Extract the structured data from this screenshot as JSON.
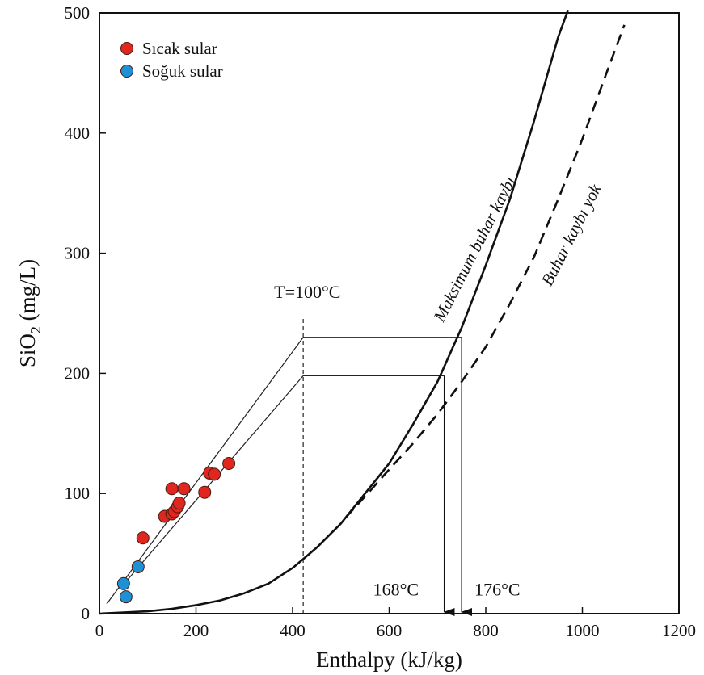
{
  "chart_data": {
    "type": "scatter",
    "xlabel": "Enthalpy (kJ/kg)",
    "ylabel": {
      "base": "SiO",
      "sub": "2",
      "rest": " (mg/L)"
    },
    "xlim": [
      0,
      1200
    ],
    "ylim": [
      0,
      500
    ],
    "xticks": [
      0,
      200,
      400,
      600,
      800,
      1000,
      1200
    ],
    "yticks": [
      0,
      100,
      200,
      300,
      400,
      500
    ],
    "grid": false,
    "legend_position": "top-left",
    "series": [
      {
        "name": "Sıcak sular",
        "color": "#e0271f",
        "points": [
          [
            90,
            63
          ],
          [
            135,
            81
          ],
          [
            150,
            83
          ],
          [
            155,
            85
          ],
          [
            162,
            89
          ],
          [
            165,
            92
          ],
          [
            150,
            104
          ],
          [
            175,
            104
          ],
          [
            218,
            101
          ],
          [
            228,
            117
          ],
          [
            238,
            116
          ],
          [
            268,
            125
          ]
        ]
      },
      {
        "name": "Soğuk sular",
        "color": "#1e90d6",
        "points": [
          [
            50,
            25
          ],
          [
            55,
            14
          ],
          [
            80,
            39
          ]
        ]
      }
    ],
    "curves": [
      {
        "label": "Maksimum buhar kaybı",
        "style": "solid",
        "points": [
          [
            0,
            0
          ],
          [
            50,
            1
          ],
          [
            100,
            2
          ],
          [
            150,
            4
          ],
          [
            200,
            7
          ],
          [
            250,
            11
          ],
          [
            300,
            17
          ],
          [
            350,
            25
          ],
          [
            400,
            38
          ],
          [
            450,
            55
          ],
          [
            500,
            75
          ],
          [
            550,
            100
          ],
          [
            600,
            125
          ],
          [
            650,
            158
          ],
          [
            700,
            193
          ],
          [
            750,
            238
          ],
          [
            800,
            290
          ],
          [
            850,
            345
          ],
          [
            900,
            410
          ],
          [
            950,
            480
          ],
          [
            970,
            502
          ]
        ]
      },
      {
        "label": "Buhar kaybı yok",
        "style": "dashed",
        "points": [
          [
            510,
            80
          ],
          [
            560,
            102
          ],
          [
            600,
            120
          ],
          [
            650,
            142
          ],
          [
            700,
            166
          ],
          [
            750,
            193
          ],
          [
            800,
            222
          ],
          [
            850,
            258
          ],
          [
            900,
            297
          ],
          [
            950,
            345
          ],
          [
            1000,
            395
          ],
          [
            1050,
            450
          ],
          [
            1087,
            490
          ]
        ]
      }
    ],
    "mixing_lines": [
      {
        "points": [
          [
            15,
            8
          ],
          [
            422,
            230
          ],
          [
            750,
            230
          ]
        ]
      },
      {
        "points": [
          [
            45,
            22
          ],
          [
            422,
            198
          ],
          [
            714,
            198
          ]
        ]
      }
    ],
    "reference_line": {
      "label": "T=100°C",
      "x": 422,
      "style": "dashed"
    },
    "arrows": [
      {
        "x": 714,
        "from": 198,
        "label": "168°C",
        "label_side": "left"
      },
      {
        "x": 750,
        "from": 230,
        "label": "176°C",
        "label_side": "right"
      }
    ]
  }
}
